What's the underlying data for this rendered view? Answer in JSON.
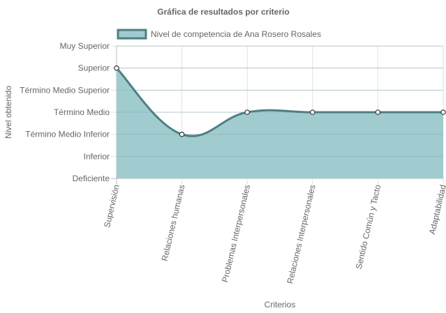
{
  "chart_data": {
    "type": "area",
    "title": "Gráfica de resultados por criterio",
    "xlabel": "Criterios",
    "ylabel": "Nivel obtenido",
    "categories": [
      "Supervisión",
      "Relaciones humanas",
      "Problemas Interpersonales",
      "Relaciones Interpersonales",
      "Sentido Común y Tacto",
      "Adaptabilidad"
    ],
    "y_levels": [
      "Deficiente",
      "Inferior",
      "Término Medio Inferior",
      "Término Medio",
      "Término Medio Superior",
      "Superior",
      "Muy Superior"
    ],
    "ylim": [
      0,
      6
    ],
    "series": [
      {
        "name": "Nivel de competencia de Ana Rosero Rosales",
        "values": [
          5,
          2,
          3,
          3,
          3,
          3
        ],
        "value_labels": [
          "Superior",
          "Término Medio Inferior",
          "Término Medio",
          "Término Medio",
          "Término Medio",
          "Término Medio"
        ]
      }
    ],
    "legend": "top",
    "grid": true,
    "colors": {
      "line": "#4e7f82",
      "fill": "#a0ccd0",
      "point_fill": "#ffffff",
      "grid": "#e0e0e0",
      "axis": "#bdbdbd",
      "text": "#666666"
    }
  }
}
